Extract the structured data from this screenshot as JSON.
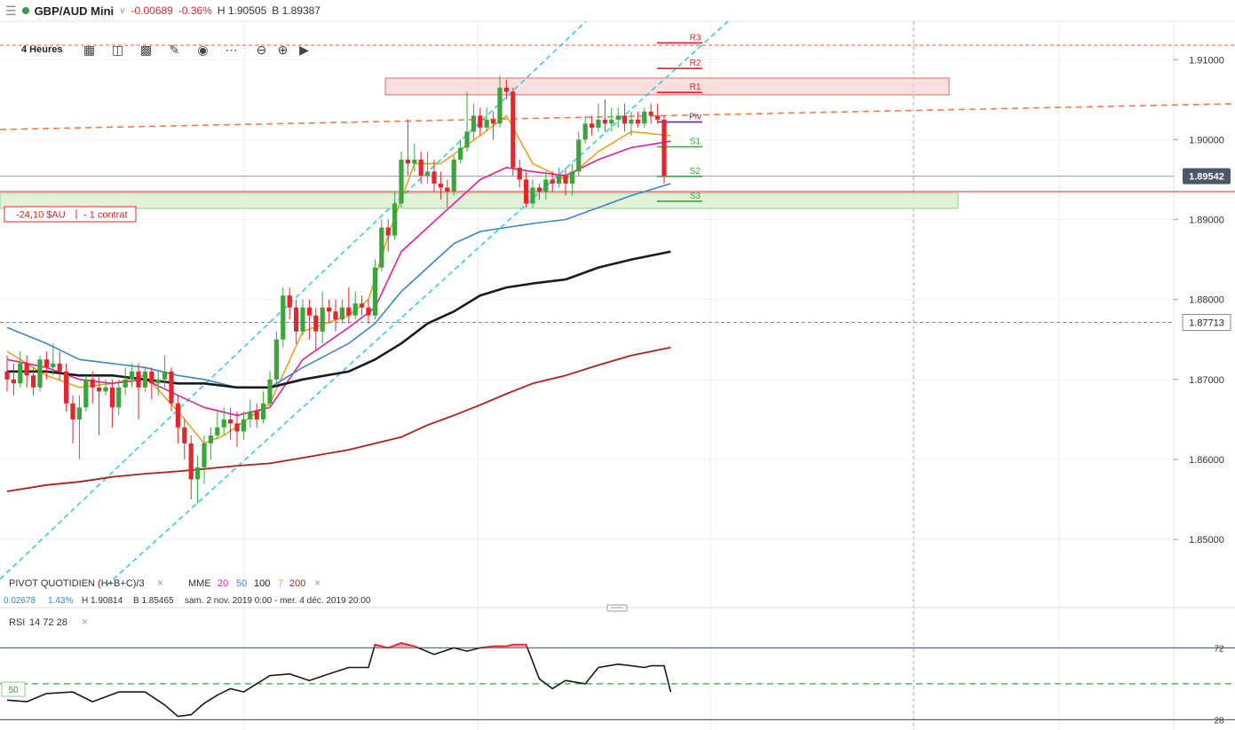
{
  "header": {
    "symbol": "GBP/AUD Mini",
    "change": "-0.00689",
    "change_pct": "-0.36%",
    "high": "H 1.90505",
    "bid": "B 1.89387"
  },
  "toolbar": {
    "timeframe": "4 Heures"
  },
  "colors": {
    "up": "#3aa53a",
    "down": "#e3262d",
    "mme20": "#e91e9a",
    "mme50": "#3a86c8",
    "mme100": "#1a1a1a",
    "mme7": "#f0a020",
    "mme200": "#b11e1e",
    "channel": "#33ccee",
    "trend": "#f07a4a"
  },
  "price_labels": {
    "current": "1.89542",
    "marker": "1.87713"
  },
  "position_label": {
    "pnl": "-24,10 $AU",
    "size": "- 1 contrat"
  },
  "pivot_labels": [
    "R3",
    "R2",
    "R1",
    "Piv",
    "S1",
    "S2",
    "S3"
  ],
  "indicator_legend": {
    "pivot": "PIVOT QUOTIDIEN (H+B+C)/3",
    "mme_label": "MME",
    "mme_periods": [
      "20",
      "50",
      "100",
      "7",
      "200"
    ],
    "info_change": "0.02678",
    "info_pct": "1.43%",
    "info_high": "H 1.90814",
    "info_low": "B 1.85465",
    "info_range": "sam. 2 nov. 2019 0:00 - mer. 4 déc. 2019 20:00"
  },
  "rsi_legend": {
    "name": "RSI",
    "params": "14 72 28",
    "mid_label": "50"
  },
  "chart_data": [
    {
      "type": "candlestick",
      "title": "GBP/AUD Mini",
      "y_ticks": [
        1.91,
        1.9,
        1.89,
        1.88,
        1.87,
        1.86,
        1.85
      ],
      "y_tick_labels": [
        "1.91000",
        "1.90000",
        "1.89000",
        "1.88000",
        "1.87000",
        "1.86000",
        "1.85000"
      ],
      "ylim": [
        1.8459,
        1.9148
      ],
      "current_price": 1.89542,
      "marked_price": 1.87713,
      "pivot_levels": {
        "R3": 1.9121,
        "R2": 1.9089,
        "R1": 1.9059,
        "Piv": 1.9022,
        "S1": 1.8991,
        "S2": 1.8954,
        "S3": 1.8923
      },
      "resistance_zone": [
        1.9056,
        1.9077
      ],
      "support_zone": [
        1.8914,
        1.8933
      ],
      "open_price": 1.8935,
      "candles": [
        [
          1.871,
          1.87,
          1.873,
          1.8685
        ],
        [
          1.87,
          1.8695,
          1.872,
          1.868
        ],
        [
          1.8695,
          1.872,
          1.8735,
          1.869
        ],
        [
          1.872,
          1.8705,
          1.873,
          1.869
        ],
        [
          1.8705,
          1.869,
          1.8715,
          1.868
        ],
        [
          1.869,
          1.8725,
          1.873,
          1.8685
        ],
        [
          1.8725,
          1.8715,
          1.8735,
          1.87
        ],
        [
          1.8715,
          1.872,
          1.8745,
          1.8705
        ],
        [
          1.872,
          1.871,
          1.8735,
          1.87
        ],
        [
          1.871,
          1.867,
          1.872,
          1.866
        ],
        [
          1.867,
          1.865,
          1.868,
          1.862
        ],
        [
          1.865,
          1.8665,
          1.868,
          1.86
        ],
        [
          1.8665,
          1.87,
          1.8705,
          1.866
        ],
        [
          1.87,
          1.869,
          1.871,
          1.867
        ],
        [
          1.869,
          1.8685,
          1.8705,
          1.863
        ],
        [
          1.8685,
          1.869,
          1.87,
          1.868
        ],
        [
          1.869,
          1.8665,
          1.87,
          1.864
        ],
        [
          1.8665,
          1.869,
          1.87,
          1.8655
        ],
        [
          1.869,
          1.87,
          1.8715,
          1.868
        ],
        [
          1.87,
          1.871,
          1.872,
          1.869
        ],
        [
          1.871,
          1.869,
          1.872,
          1.865
        ],
        [
          1.869,
          1.871,
          1.8715,
          1.8685
        ],
        [
          1.871,
          1.8695,
          1.8715,
          1.8675
        ],
        [
          1.8695,
          1.87,
          1.871,
          1.868
        ],
        [
          1.87,
          1.871,
          1.873,
          1.869
        ],
        [
          1.871,
          1.867,
          1.8715,
          1.866
        ],
        [
          1.867,
          1.864,
          1.868,
          1.862
        ],
        [
          1.864,
          1.862,
          1.865,
          1.86
        ],
        [
          1.862,
          1.8575,
          1.863,
          1.855
        ],
        [
          1.8575,
          1.859,
          1.8605,
          1.8545
        ],
        [
          1.859,
          1.862,
          1.863,
          1.857
        ],
        [
          1.862,
          1.863,
          1.864,
          1.86
        ],
        [
          1.863,
          1.864,
          1.866,
          1.8625
        ],
        [
          1.864,
          1.865,
          1.8665,
          1.863
        ],
        [
          1.865,
          1.8645,
          1.8665,
          1.8625
        ],
        [
          1.8645,
          1.8635,
          1.866,
          1.8615
        ],
        [
          1.8635,
          1.865,
          1.866,
          1.8625
        ],
        [
          1.865,
          1.866,
          1.8675,
          1.864
        ],
        [
          1.866,
          1.865,
          1.867,
          1.864
        ],
        [
          1.865,
          1.867,
          1.8685,
          1.8645
        ],
        [
          1.867,
          1.87,
          1.871,
          1.8665
        ],
        [
          1.87,
          1.875,
          1.876,
          1.8695
        ],
        [
          1.875,
          1.8805,
          1.8815,
          1.874
        ],
        [
          1.8805,
          1.879,
          1.8815,
          1.8775
        ],
        [
          1.879,
          1.876,
          1.88,
          1.8745
        ],
        [
          1.876,
          1.879,
          1.88,
          1.8755
        ],
        [
          1.879,
          1.878,
          1.88,
          1.875
        ],
        [
          1.878,
          1.876,
          1.879,
          1.8735
        ],
        [
          1.876,
          1.879,
          1.881,
          1.8745
        ],
        [
          1.879,
          1.8785,
          1.88,
          1.877
        ],
        [
          1.8785,
          1.8775,
          1.88,
          1.876
        ],
        [
          1.8775,
          1.879,
          1.88,
          1.877
        ],
        [
          1.879,
          1.878,
          1.8815,
          1.877
        ],
        [
          1.878,
          1.8795,
          1.881,
          1.8775
        ],
        [
          1.8795,
          1.879,
          1.8805,
          1.878
        ],
        [
          1.879,
          1.878,
          1.88,
          1.877
        ],
        [
          1.878,
          1.884,
          1.885,
          1.8775
        ],
        [
          1.884,
          1.889,
          1.89,
          1.8835
        ],
        [
          1.889,
          1.888,
          1.89,
          1.886
        ],
        [
          1.888,
          1.892,
          1.8935,
          1.8875
        ],
        [
          1.892,
          1.8975,
          1.8985,
          1.8915
        ],
        [
          1.8975,
          1.897,
          1.9025,
          1.8955
        ],
        [
          1.897,
          1.8975,
          1.8995,
          1.896
        ],
        [
          1.8975,
          1.8955,
          1.8985,
          1.8945
        ],
        [
          1.8955,
          1.896,
          1.8985,
          1.8945
        ],
        [
          1.896,
          1.8945,
          1.8975,
          1.8935
        ],
        [
          1.8945,
          1.894,
          1.896,
          1.8925
        ],
        [
          1.894,
          1.8935,
          1.895,
          1.8915
        ],
        [
          1.8935,
          1.8975,
          1.898,
          1.893
        ],
        [
          1.8975,
          1.899,
          1.9,
          1.897
        ],
        [
          1.899,
          1.901,
          1.906,
          1.8985
        ],
        [
          1.901,
          1.903,
          1.9045,
          1.9
        ],
        [
          1.903,
          1.9015,
          1.904,
          1.9005
        ],
        [
          1.9015,
          1.9025,
          1.904,
          1.901
        ],
        [
          1.9025,
          1.902,
          1.9035,
          1.9
        ],
        [
          1.902,
          1.9065,
          1.908,
          1.9015
        ],
        [
          1.9065,
          1.906,
          1.9075,
          1.905
        ],
        [
          1.906,
          1.8965,
          1.9065,
          1.8955
        ],
        [
          1.8965,
          1.895,
          1.8975,
          1.894
        ],
        [
          1.895,
          1.892,
          1.896,
          1.8915
        ],
        [
          1.892,
          1.894,
          1.895,
          1.8915
        ],
        [
          1.894,
          1.8935,
          1.8945,
          1.8925
        ],
        [
          1.8935,
          1.895,
          1.896,
          1.8925
        ],
        [
          1.895,
          1.8945,
          1.896,
          1.8935
        ],
        [
          1.8945,
          1.8955,
          1.8965,
          1.894
        ],
        [
          1.8955,
          1.8945,
          1.8965,
          1.893
        ],
        [
          1.8945,
          1.896,
          1.897,
          1.893
        ],
        [
          1.896,
          1.9,
          1.901,
          1.8955
        ],
        [
          1.9,
          1.902,
          1.903,
          1.8995
        ],
        [
          1.902,
          1.9015,
          1.903,
          1.9005
        ],
        [
          1.9015,
          1.9025,
          1.9045,
          1.901
        ],
        [
          1.9025,
          1.902,
          1.905,
          1.901
        ],
        [
          1.902,
          1.9025,
          1.904,
          1.901
        ],
        [
          1.9025,
          1.903,
          1.904,
          1.9015
        ],
        [
          1.903,
          1.902,
          1.9045,
          1.901
        ],
        [
          1.902,
          1.9025,
          1.9035,
          1.9005
        ],
        [
          1.9025,
          1.902,
          1.9035,
          1.9015
        ],
        [
          1.902,
          1.9035,
          1.904,
          1.9015
        ],
        [
          1.9035,
          1.903,
          1.9045,
          1.902
        ],
        [
          1.903,
          1.9025,
          1.9045,
          1.902
        ],
        [
          1.9025,
          1.8955,
          1.903,
          1.8945
        ]
      ],
      "series": [
        {
          "name": "MME 7",
          "color": "#f0a020",
          "x": [
            0,
            6,
            11,
            16,
            21,
            26,
            30,
            33,
            40,
            45,
            52,
            55,
            58,
            62,
            66,
            72,
            76,
            80,
            85,
            90,
            95,
            101
          ],
          "y": [
            1.8735,
            1.8705,
            1.869,
            1.8695,
            1.8705,
            1.866,
            1.862,
            1.863,
            1.867,
            1.876,
            1.878,
            1.88,
            1.888,
            1.897,
            1.897,
            1.9005,
            1.903,
            1.897,
            1.895,
            1.8985,
            1.901,
            1.9005
          ]
        },
        {
          "name": "MME 20",
          "color": "#e91e9a",
          "x": [
            0,
            6,
            11,
            16,
            21,
            26,
            30,
            35,
            40,
            45,
            52,
            56,
            60,
            64,
            68,
            72,
            76,
            80,
            85,
            90,
            95,
            101
          ],
          "y": [
            1.8725,
            1.8715,
            1.87,
            1.8695,
            1.87,
            1.868,
            1.8665,
            1.8655,
            1.8665,
            1.8725,
            1.8765,
            1.879,
            1.886,
            1.889,
            1.892,
            1.895,
            1.8965,
            1.896,
            1.8955,
            1.8975,
            1.899,
            1.8998
          ]
        },
        {
          "name": "MME 50",
          "color": "#3a86c8",
          "x": [
            0,
            6,
            11,
            16,
            21,
            26,
            30,
            35,
            40,
            45,
            52,
            56,
            60,
            64,
            68,
            72,
            76,
            80,
            85,
            90,
            95,
            101
          ],
          "y": [
            1.8765,
            1.8745,
            1.8725,
            1.872,
            1.8715,
            1.8705,
            1.87,
            1.869,
            1.869,
            1.8715,
            1.8745,
            1.877,
            1.881,
            1.884,
            1.887,
            1.8885,
            1.889,
            1.8895,
            1.89,
            1.8915,
            1.893,
            1.8945
          ]
        },
        {
          "name": "MME 100",
          "color": "#1a1a1a",
          "x": [
            0,
            6,
            11,
            16,
            21,
            26,
            30,
            35,
            40,
            45,
            52,
            56,
            60,
            64,
            68,
            72,
            76,
            80,
            85,
            90,
            95,
            101
          ],
          "y": [
            1.871,
            1.871,
            1.8705,
            1.8705,
            1.87,
            1.8695,
            1.8695,
            1.869,
            1.869,
            1.87,
            1.871,
            1.8725,
            1.8745,
            1.877,
            1.8785,
            1.8805,
            1.8815,
            1.882,
            1.8825,
            1.884,
            1.885,
            1.886
          ]
        },
        {
          "name": "MME 200",
          "color": "#b11e1e",
          "x": [
            0,
            6,
            11,
            16,
            21,
            26,
            30,
            35,
            40,
            45,
            52,
            56,
            60,
            64,
            68,
            72,
            76,
            80,
            85,
            90,
            95,
            101
          ],
          "y": [
            1.856,
            1.8568,
            1.8572,
            1.8578,
            1.8582,
            1.8585,
            1.8588,
            1.8592,
            1.8595,
            1.8602,
            1.8612,
            1.862,
            1.8628,
            1.8643,
            1.8655,
            1.8668,
            1.8682,
            1.8695,
            1.8705,
            1.8718,
            1.873,
            1.874
          ]
        }
      ]
    },
    {
      "type": "line",
      "title": "RSI",
      "y_ticks": [
        72,
        28
      ],
      "y_tick_labels": [
        "72",
        "28"
      ],
      "ylim": [
        26,
        82
      ],
      "overbought": 72,
      "oversold": 28,
      "midline": 50,
      "x": [
        0,
        3,
        6,
        10,
        13,
        17,
        21,
        24,
        26,
        28,
        30,
        32,
        34,
        36,
        40,
        43,
        46,
        49,
        52,
        55,
        56,
        58,
        60,
        62,
        65,
        68,
        70,
        72,
        74,
        76,
        77,
        78,
        79,
        81,
        83,
        85,
        88,
        90,
        93,
        95,
        97,
        98,
        100,
        101
      ],
      "values": [
        40,
        39,
        44,
        45,
        39,
        45,
        45,
        37,
        30,
        31,
        38,
        43,
        47,
        45,
        55,
        56,
        52,
        56,
        60,
        60,
        74,
        72,
        75,
        73,
        68,
        72,
        70,
        72,
        73,
        73,
        74,
        74,
        74,
        53,
        47,
        52,
        50,
        60,
        62,
        61,
        60,
        61,
        61,
        45
      ]
    }
  ]
}
